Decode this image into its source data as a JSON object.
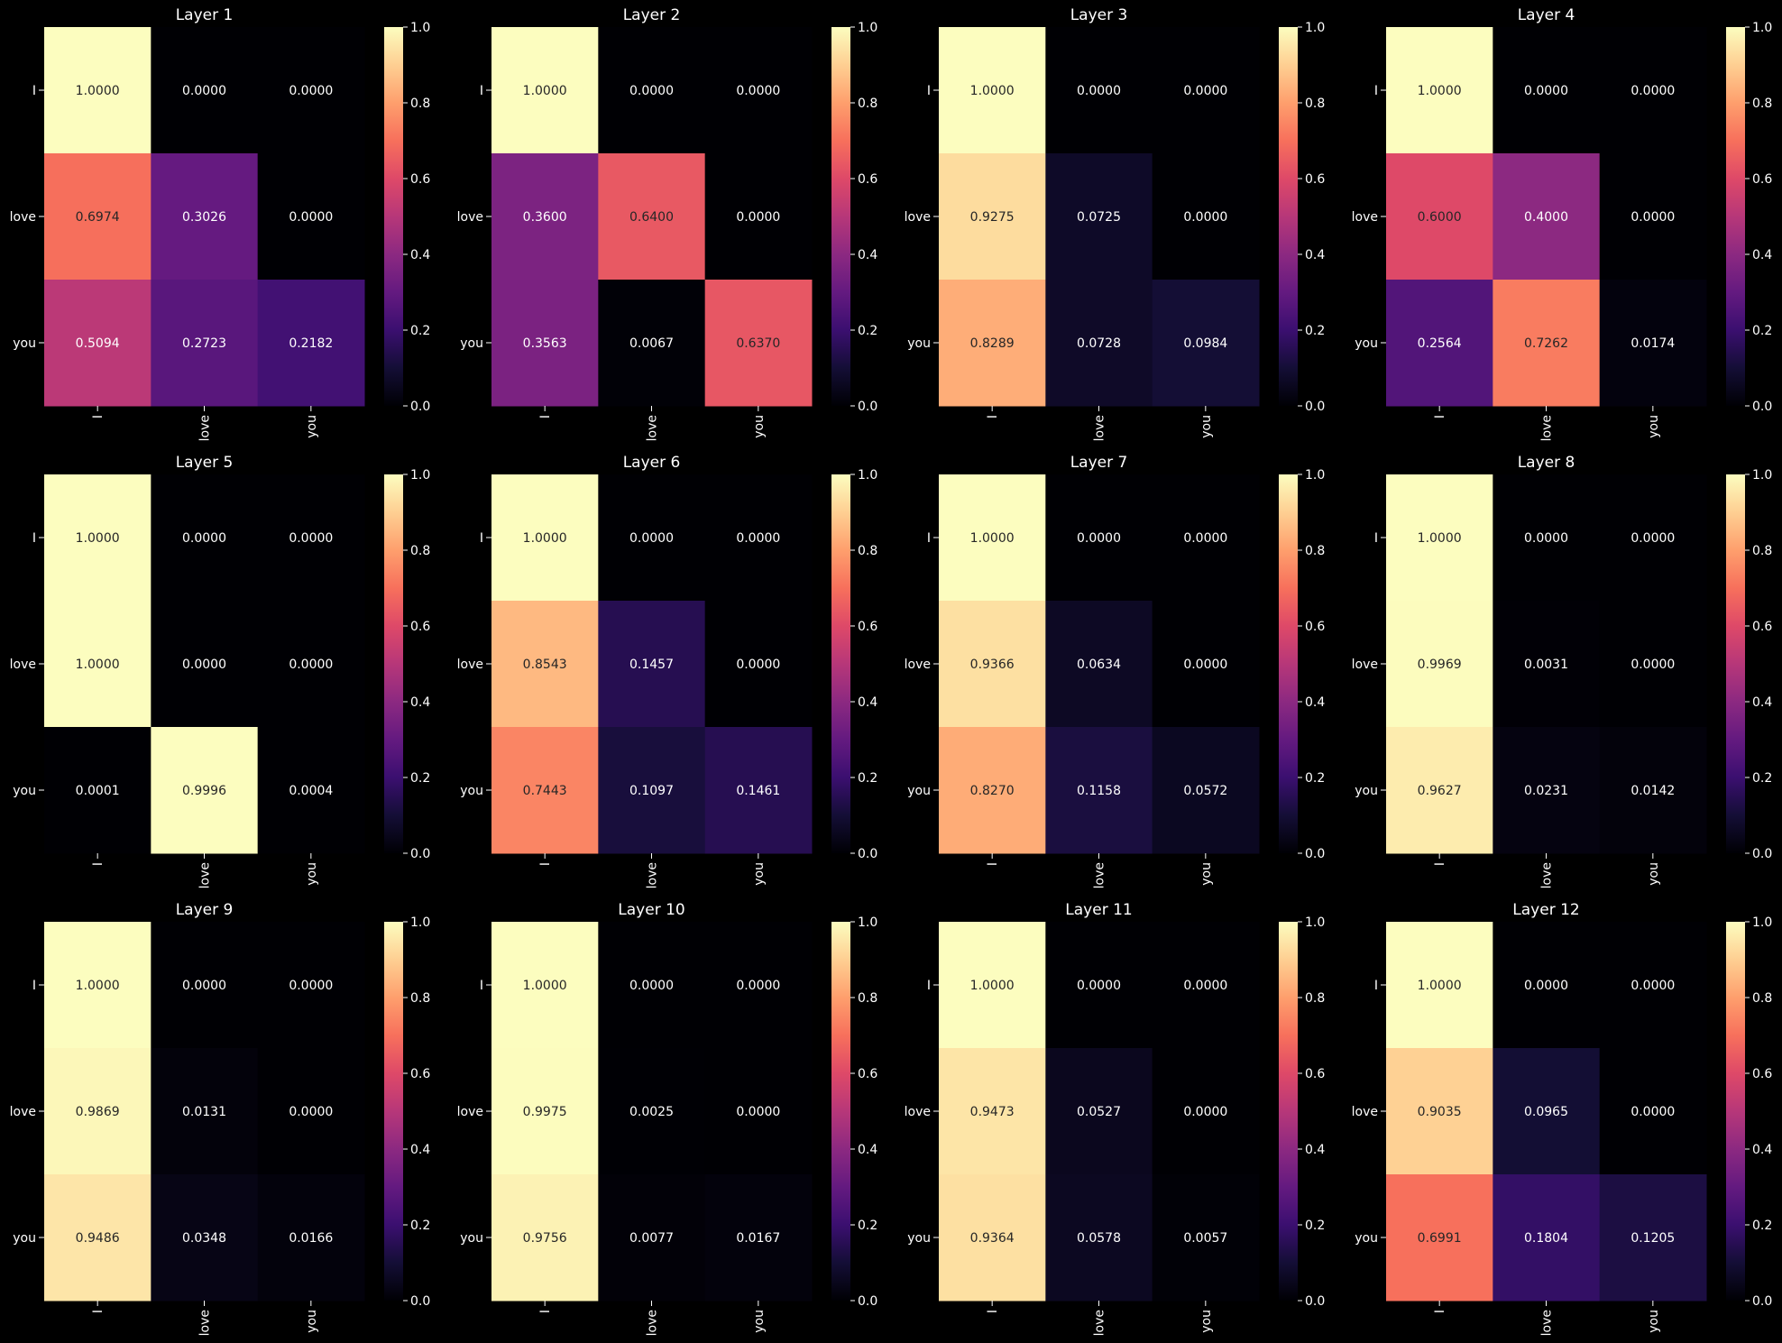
{
  "chart_data": {
    "type": "heatmap",
    "colormap": "magma",
    "background": "#000000",
    "vmin": 0.0,
    "vmax": 1.0,
    "colorbar_ticks": [
      "0.0",
      "0.2",
      "0.4",
      "0.6",
      "0.8",
      "1.0"
    ],
    "x_tokens": [
      "I",
      "love",
      "you"
    ],
    "y_tokens": [
      "I",
      "love",
      "you"
    ],
    "layers": [
      {
        "title": "Layer 1",
        "values": [
          [
            1.0,
            0.0,
            0.0
          ],
          [
            0.6974,
            0.3026,
            0.0
          ],
          [
            0.5094,
            0.2723,
            0.2182
          ]
        ]
      },
      {
        "title": "Layer 2",
        "values": [
          [
            1.0,
            0.0,
            0.0
          ],
          [
            0.36,
            0.64,
            0.0
          ],
          [
            0.3563,
            0.0067,
            0.637
          ]
        ]
      },
      {
        "title": "Layer 3",
        "values": [
          [
            1.0,
            0.0,
            0.0
          ],
          [
            0.9275,
            0.0725,
            0.0
          ],
          [
            0.8289,
            0.0728,
            0.0984
          ]
        ]
      },
      {
        "title": "Layer 4",
        "values": [
          [
            1.0,
            0.0,
            0.0
          ],
          [
            0.6,
            0.4,
            0.0
          ],
          [
            0.2564,
            0.7262,
            0.0174
          ]
        ]
      },
      {
        "title": "Layer 5",
        "values": [
          [
            1.0,
            0.0,
            0.0
          ],
          [
            1.0,
            0.0,
            0.0
          ],
          [
            0.0001,
            0.9996,
            0.0004
          ]
        ]
      },
      {
        "title": "Layer 6",
        "values": [
          [
            1.0,
            0.0,
            0.0
          ],
          [
            0.8543,
            0.1457,
            0.0
          ],
          [
            0.7443,
            0.1097,
            0.1461
          ]
        ]
      },
      {
        "title": "Layer 7",
        "values": [
          [
            1.0,
            0.0,
            0.0
          ],
          [
            0.9366,
            0.0634,
            0.0
          ],
          [
            0.827,
            0.1158,
            0.0572
          ]
        ]
      },
      {
        "title": "Layer 8",
        "values": [
          [
            1.0,
            0.0,
            0.0
          ],
          [
            0.9969,
            0.0031,
            0.0
          ],
          [
            0.9627,
            0.0231,
            0.0142
          ]
        ]
      },
      {
        "title": "Layer 9",
        "values": [
          [
            1.0,
            0.0,
            0.0
          ],
          [
            0.9869,
            0.0131,
            0.0
          ],
          [
            0.9486,
            0.0348,
            0.0166
          ]
        ]
      },
      {
        "title": "Layer 10",
        "values": [
          [
            1.0,
            0.0,
            0.0
          ],
          [
            0.9975,
            0.0025,
            0.0
          ],
          [
            0.9756,
            0.0077,
            0.0167
          ]
        ]
      },
      {
        "title": "Layer 11",
        "values": [
          [
            1.0,
            0.0,
            0.0
          ],
          [
            0.9473,
            0.0527,
            0.0
          ],
          [
            0.9364,
            0.0578,
            0.0057
          ]
        ]
      },
      {
        "title": "Layer 12",
        "values": [
          [
            1.0,
            0.0,
            0.0
          ],
          [
            0.9035,
            0.0965,
            0.0
          ],
          [
            0.6991,
            0.1804,
            0.1205
          ]
        ]
      }
    ]
  }
}
